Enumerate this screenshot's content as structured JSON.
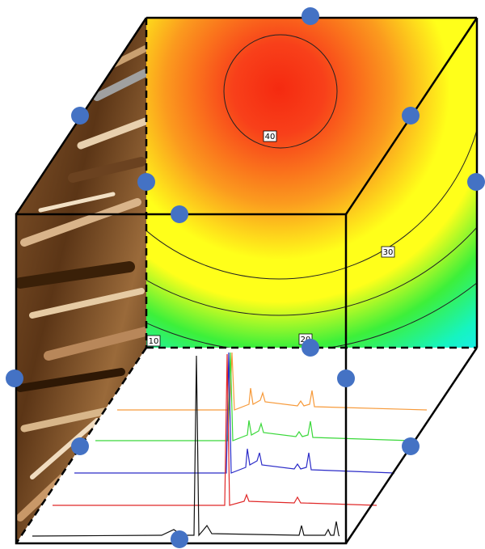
{
  "contour_labels": [
    "40",
    "30",
    "20",
    "10"
  ]
}
